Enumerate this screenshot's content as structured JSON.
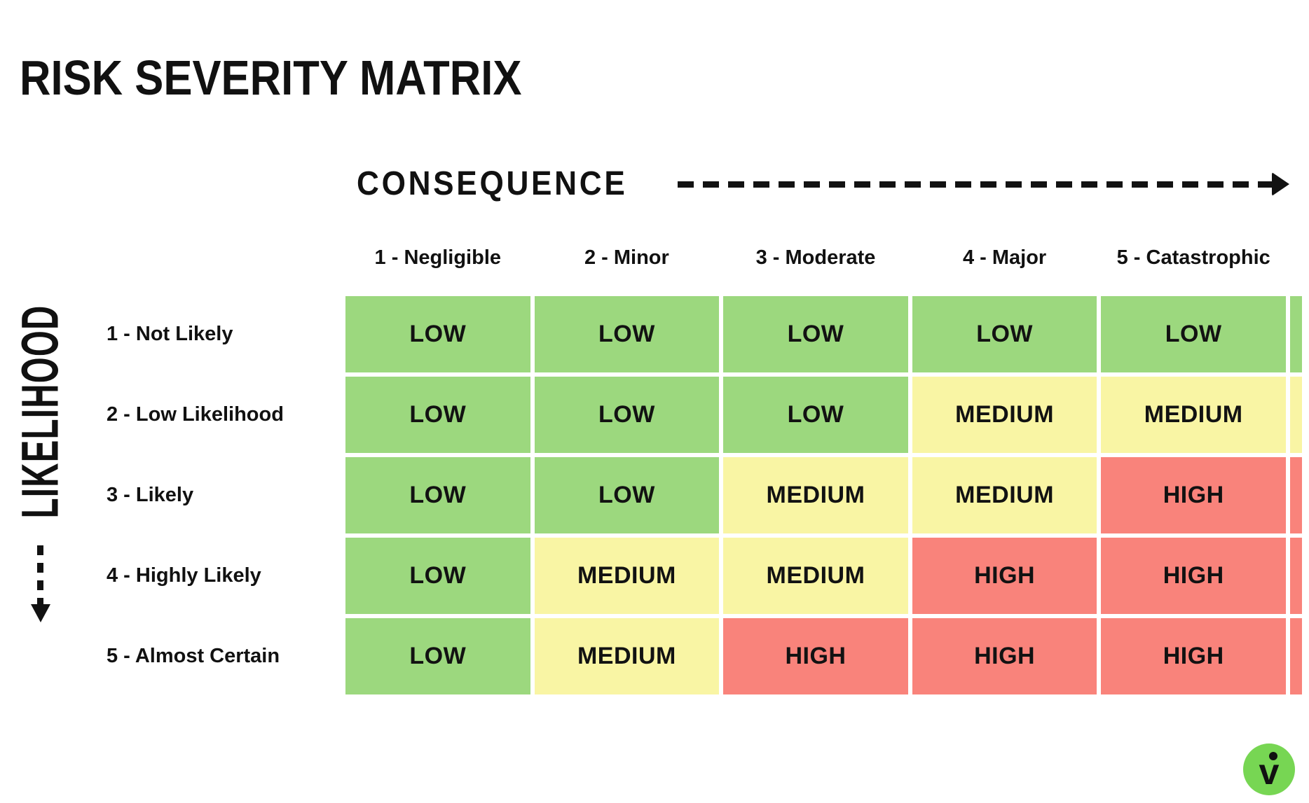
{
  "title": "RISK SEVERITY MATRIX",
  "chart_data": {
    "type": "heatmap",
    "title": "RISK SEVERITY MATRIX",
    "x_axis": {
      "label": "CONSEQUENCE",
      "categories": [
        "1 -  Negligible",
        "2 - Minor",
        "3 - Moderate",
        "4 - Major",
        "5 - Catastrophic"
      ]
    },
    "y_axis": {
      "label": "LIKELIHOOD",
      "categories": [
        "1 - Not Likely",
        "2 - Low Likelihood",
        "3 - Likely",
        "4 - Highly Likely",
        "5 - Almost Certain"
      ]
    },
    "rows": [
      [
        "LOW",
        "LOW",
        "LOW",
        "LOW",
        "LOW"
      ],
      [
        "LOW",
        "LOW",
        "LOW",
        "MEDIUM",
        "MEDIUM"
      ],
      [
        "LOW",
        "LOW",
        "MEDIUM",
        "MEDIUM",
        "HIGH"
      ],
      [
        "LOW",
        "MEDIUM",
        "MEDIUM",
        "HIGH",
        "HIGH"
      ],
      [
        "LOW",
        "MEDIUM",
        "HIGH",
        "HIGH",
        "HIGH"
      ]
    ],
    "severity_colors": {
      "LOW": "#9cd87e",
      "MEDIUM": "#f9f5a4",
      "HIGH": "#f9837b"
    },
    "cell_text_color": "#121212",
    "partial_right_column_colors": [
      "#9cd87e",
      "#f9f5a4",
      "#f9837b",
      "#f9837b",
      "#f9837b"
    ],
    "layout_hints": {
      "grid_gap_color": "#ffffff",
      "x_arrow_direction": "right",
      "y_arrow_direction": "down"
    }
  },
  "logo": {
    "letter": "v",
    "circle_color": "#77d653",
    "mark_color": "#111111"
  }
}
